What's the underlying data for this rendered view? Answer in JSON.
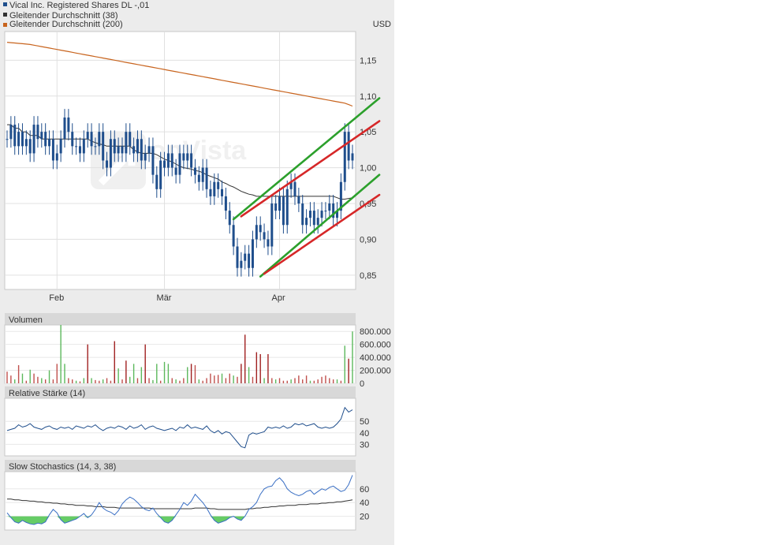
{
  "legend": [
    {
      "label": "Vical Inc. Registered Shares DL -,01",
      "color": "#1f4e8c"
    },
    {
      "label": "Gleitender Durchschnitt (38)",
      "color": "#333333"
    },
    {
      "label": "Gleitender Durchschnitt (200)",
      "color": "#c8641e"
    }
  ],
  "watermark": "onVista",
  "chart_data": [
    {
      "type": "candlestick",
      "currency": "USD",
      "ylim": [
        0.83,
        1.19
      ],
      "yticks": [
        0.85,
        0.9,
        0.95,
        1.0,
        1.05,
        1.1,
        1.15
      ],
      "ytick_labels": [
        "0,85",
        "0,90",
        "0,95",
        "1,00",
        "1,05",
        "1,10",
        "1,15"
      ],
      "xlabels": [
        {
          "label": "Feb",
          "index": 13
        },
        {
          "label": "Mär",
          "index": 41
        },
        {
          "label": "Apr",
          "index": 71
        }
      ],
      "closes": [
        1.04,
        1.06,
        1.03,
        1.05,
        1.03,
        1.04,
        1.02,
        1.06,
        1.04,
        1.05,
        1.03,
        1.04,
        1.01,
        1.02,
        1.04,
        1.07,
        1.05,
        1.03,
        1.03,
        1.02,
        1.04,
        1.05,
        1.03,
        1.03,
        1.05,
        1.01,
        1.0,
        1.04,
        1.02,
        1.03,
        1.02,
        1.05,
        1.03,
        1.02,
        1.04,
        1.01,
        1.02,
        1.03,
        0.99,
        0.97,
        1.01,
        1.0,
        1.02,
        1.0,
        0.99,
        1.02,
        1.01,
        1.02,
        1.0,
        0.99,
        0.98,
        1.0,
        0.97,
        0.96,
        0.98,
        0.97,
        0.96,
        0.94,
        0.92,
        0.89,
        0.86,
        0.87,
        0.88,
        0.86,
        0.9,
        0.92,
        0.91,
        0.9,
        0.89,
        0.95,
        0.94,
        0.96,
        0.92,
        0.97,
        0.98,
        0.96,
        0.95,
        0.92,
        0.93,
        0.94,
        0.92,
        0.93,
        0.94,
        0.94,
        0.95,
        0.93,
        0.94,
        0.98,
        1.05,
        1.01,
        1.02
      ],
      "ma38": [
        1.06,
        1.06,
        1.055,
        1.055,
        1.05,
        1.05,
        1.045,
        1.045,
        1.045,
        1.04,
        1.04,
        1.04,
        1.04,
        1.04,
        1.04,
        1.04,
        1.04,
        1.04,
        1.04,
        1.04,
        1.04,
        1.04,
        1.037,
        1.035,
        1.033,
        1.032,
        1.03,
        1.03,
        1.03,
        1.03,
        1.03,
        1.03,
        1.03,
        1.025,
        1.022,
        1.02,
        1.02,
        1.02,
        1.02,
        1.018,
        1.015,
        1.012,
        1.01,
        1.008,
        1.005,
        1.002,
        1.0,
        0.999,
        0.998,
        0.996,
        0.995,
        0.993,
        0.99,
        0.988,
        0.986,
        0.984,
        0.98,
        0.978,
        0.975,
        0.973,
        0.97,
        0.967,
        0.965,
        0.963,
        0.962,
        0.96,
        0.96,
        0.96,
        0.96,
        0.96,
        0.96,
        0.96,
        0.96,
        0.96,
        0.96,
        0.96,
        0.96,
        0.96,
        0.96,
        0.96,
        0.96,
        0.96,
        0.96,
        0.96,
        0.96,
        0.96,
        0.958,
        0.956,
        0.956,
        0.957,
        0.958
      ],
      "ma200": [
        1.175,
        1.1745,
        1.174,
        1.1735,
        1.173,
        1.1725,
        1.172,
        1.171,
        1.17,
        1.169,
        1.168,
        1.167,
        1.166,
        1.165,
        1.164,
        1.163,
        1.162,
        1.161,
        1.16,
        1.159,
        1.158,
        1.157,
        1.156,
        1.155,
        1.154,
        1.153,
        1.152,
        1.151,
        1.15,
        1.149,
        1.148,
        1.147,
        1.146,
        1.145,
        1.144,
        1.143,
        1.142,
        1.141,
        1.14,
        1.139,
        1.138,
        1.137,
        1.136,
        1.135,
        1.134,
        1.133,
        1.132,
        1.131,
        1.13,
        1.129,
        1.128,
        1.127,
        1.126,
        1.125,
        1.124,
        1.123,
        1.122,
        1.121,
        1.12,
        1.119,
        1.118,
        1.117,
        1.116,
        1.115,
        1.114,
        1.113,
        1.112,
        1.111,
        1.11,
        1.109,
        1.108,
        1.107,
        1.106,
        1.105,
        1.104,
        1.103,
        1.102,
        1.101,
        1.1,
        1.099,
        1.098,
        1.097,
        1.096,
        1.095,
        1.094,
        1.093,
        1.092,
        1.091,
        1.09,
        1.088,
        1.086
      ],
      "trendlines": [
        {
          "color": "#2ca02c",
          "from": [
            59,
            0.928
          ],
          "to": [
            97,
            1.097
          ]
        },
        {
          "color": "#d62728",
          "from": [
            61,
            0.932
          ],
          "to": [
            97,
            1.065
          ]
        },
        {
          "color": "#2ca02c",
          "from": [
            66,
            0.848
          ],
          "to": [
            97,
            0.99
          ]
        },
        {
          "color": "#d62728",
          "from": [
            67,
            0.852
          ],
          "to": [
            97,
            0.962
          ]
        }
      ]
    },
    {
      "type": "bar",
      "title": "Volumen",
      "ylim": [
        0,
        900000
      ],
      "yticks": [
        0,
        200000,
        400000,
        600000,
        800000
      ],
      "ytick_labels": [
        "0",
        "200.000",
        "400.000",
        "600.000",
        "800.000"
      ],
      "values": [
        180000,
        120000,
        60000,
        280000,
        150000,
        40000,
        210000,
        150000,
        100000,
        80000,
        60000,
        200000,
        60000,
        300000,
        900000,
        300000,
        80000,
        60000,
        40000,
        30000,
        80000,
        600000,
        80000,
        50000,
        40000,
        60000,
        80000,
        40000,
        650000,
        230000,
        60000,
        350000,
        100000,
        300000,
        80000,
        250000,
        600000,
        80000,
        50000,
        300000,
        40000,
        330000,
        300000,
        80000,
        60000,
        40000,
        80000,
        250000,
        300000,
        280000,
        60000,
        40000,
        80000,
        150000,
        120000,
        130000,
        150000,
        80000,
        150000,
        120000,
        100000,
        300000,
        750000,
        250000,
        100000,
        480000,
        450000,
        80000,
        450000,
        80000,
        60000,
        80000,
        40000,
        40000,
        60000,
        80000,
        120000,
        60000,
        120000,
        40000,
        40000,
        60000,
        100000,
        120000,
        80000,
        60000,
        60000,
        40000,
        580000,
        380000,
        800000
      ],
      "colors": [
        "#c0504d",
        "#c0504d",
        "#5cb85c",
        "#c0504d",
        "#5cb85c",
        "#c0504d",
        "#5cb85c",
        "#c0504d",
        "#c0504d",
        "#5cb85c",
        "#c0504d",
        "#5cb85c",
        "#c0504d",
        "#c0504d",
        "#5cb85c",
        "#5cb85c",
        "#c0504d",
        "#c0504d",
        "#5cb85c",
        "#c0504d",
        "#5cb85c",
        "#a02020",
        "#5cb85c",
        "#c0504d",
        "#c0504d",
        "#5cb85c",
        "#c0504d",
        "#c0504d",
        "#a02020",
        "#5cb85c",
        "#c0504d",
        "#a02020",
        "#5cb85c",
        "#5cb85c",
        "#c0504d",
        "#5cb85c",
        "#a02020",
        "#c0504d",
        "#5cb85c",
        "#5cb85c",
        "#c0504d",
        "#5cb85c",
        "#5cb85c",
        "#c0504d",
        "#5cb85c",
        "#c0504d",
        "#c0504d",
        "#5cb85c",
        "#a02020",
        "#c0504d",
        "#5cb85c",
        "#c0504d",
        "#c0504d",
        "#c0504d",
        "#c0504d",
        "#c0504d",
        "#5cb85c",
        "#c0504d",
        "#c0504d",
        "#5cb85c",
        "#c0504d",
        "#a02020",
        "#a02020",
        "#5cb85c",
        "#c0504d",
        "#a02020",
        "#a02020",
        "#5cb85c",
        "#a02020",
        "#c0504d",
        "#5cb85c",
        "#c0504d",
        "#c0504d",
        "#c0504d",
        "#5cb85c",
        "#c0504d",
        "#c0504d",
        "#c0504d",
        "#c0504d",
        "#5cb85c",
        "#c0504d",
        "#c0504d",
        "#c0504d",
        "#c0504d",
        "#c0504d",
        "#c0504d",
        "#5cb85c",
        "#c0504d",
        "#5cb85c",
        "#a02020",
        "#5cb85c"
      ]
    },
    {
      "type": "line",
      "title": "Relative Stärke (14)",
      "ylim": [
        20,
        70
      ],
      "yticks": [
        30,
        40,
        50
      ],
      "ytick_labels": [
        "30",
        "40",
        "50"
      ],
      "values": [
        42,
        43,
        44,
        47,
        45,
        46,
        48,
        45,
        44,
        43,
        45,
        46,
        44,
        43,
        45,
        44,
        45,
        43,
        46,
        45,
        44,
        46,
        45,
        47,
        44,
        42,
        44,
        45,
        44,
        46,
        45,
        43,
        46,
        44,
        45,
        47,
        43,
        45,
        46,
        44,
        43,
        42,
        43,
        44,
        42,
        45,
        44,
        47,
        44,
        45,
        44,
        43,
        46,
        42,
        40,
        42,
        39,
        41,
        40,
        36,
        32,
        28,
        27,
        38,
        40,
        39,
        40,
        41,
        45,
        44,
        45,
        44,
        46,
        44,
        45,
        48,
        47,
        48,
        46,
        47,
        48,
        45,
        44,
        45,
        44,
        45,
        48,
        52,
        62,
        58,
        60
      ]
    },
    {
      "type": "line",
      "title": "Slow Stochastics (14, 3, 38)",
      "ylim": [
        0,
        85
      ],
      "yticks": [
        20,
        40,
        60
      ],
      "ytick_labels": [
        "20",
        "40",
        "60"
      ],
      "fast": [
        25,
        18,
        12,
        10,
        14,
        11,
        9,
        8,
        10,
        9,
        12,
        22,
        30,
        25,
        15,
        10,
        12,
        14,
        16,
        20,
        24,
        18,
        22,
        30,
        40,
        32,
        28,
        26,
        22,
        28,
        38,
        44,
        48,
        45,
        40,
        34,
        30,
        28,
        32,
        24,
        18,
        12,
        10,
        14,
        22,
        30,
        40,
        36,
        42,
        52,
        46,
        40,
        32,
        22,
        14,
        10,
        12,
        14,
        18,
        20,
        16,
        14,
        20,
        30,
        34,
        40,
        52,
        60,
        63,
        64,
        72,
        76,
        70,
        60,
        55,
        52,
        50,
        52,
        56,
        58,
        52,
        56,
        60,
        58,
        62,
        64,
        60,
        56,
        58,
        66,
        80
      ],
      "slow": [
        45,
        45,
        44,
        44,
        43,
        43,
        42,
        42,
        41,
        41,
        40,
        40,
        39,
        39,
        38,
        38,
        37,
        37,
        36,
        36,
        36,
        35,
        35,
        34,
        34,
        34,
        33,
        33,
        33,
        32,
        32,
        32,
        32,
        32,
        32,
        32,
        32,
        32,
        31,
        31,
        31,
        31,
        31,
        31,
        31,
        31,
        31,
        31,
        31,
        32,
        32,
        32,
        32,
        31,
        31,
        30,
        30,
        30,
        30,
        30,
        30,
        30,
        30,
        31,
        31,
        32,
        32,
        33,
        33,
        34,
        34,
        35,
        35,
        36,
        36,
        36,
        37,
        37,
        37,
        38,
        38,
        38,
        39,
        39,
        40,
        40,
        41,
        41,
        42,
        43,
        44
      ]
    }
  ]
}
